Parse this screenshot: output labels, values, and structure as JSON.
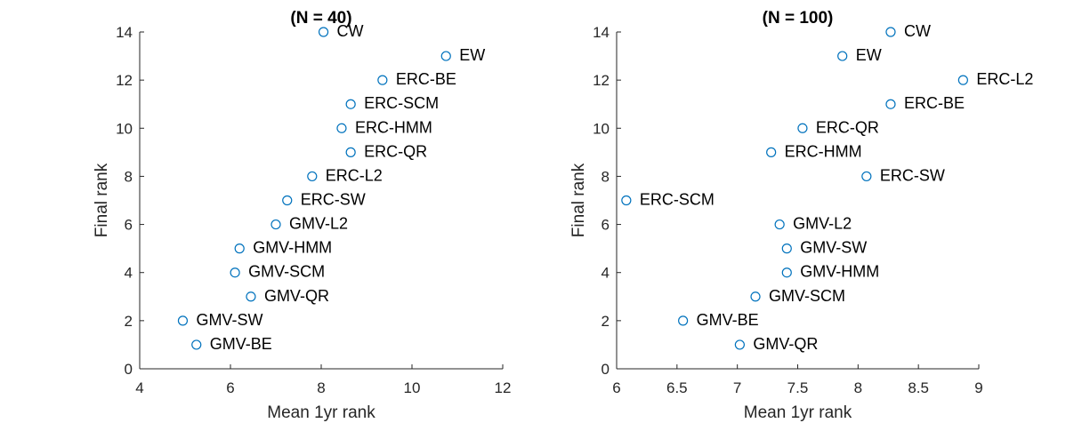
{
  "chart_data": [
    {
      "type": "scatter",
      "title": "(N = 40)",
      "xlabel": "Mean 1yr rank",
      "ylabel": "Final rank",
      "xlim": [
        4,
        12
      ],
      "ylim": [
        0,
        14
      ],
      "xticks": [
        4,
        6,
        8,
        10,
        12
      ],
      "yticks": [
        0,
        2,
        4,
        6,
        8,
        10,
        12,
        14
      ],
      "xtick_labels": [
        "4",
        "6",
        "8",
        "10",
        "12"
      ],
      "ytick_labels": [
        "0",
        "2",
        "4",
        "6",
        "8",
        "10",
        "12",
        "14"
      ],
      "grid": false,
      "marker_color": "#0072BD",
      "points": [
        {
          "label": "CW",
          "x": 8.05,
          "y": 14
        },
        {
          "label": "EW",
          "x": 10.75,
          "y": 13
        },
        {
          "label": "ERC-BE",
          "x": 9.35,
          "y": 12
        },
        {
          "label": "ERC-SCM",
          "x": 8.65,
          "y": 11
        },
        {
          "label": "ERC-HMM",
          "x": 8.45,
          "y": 10
        },
        {
          "label": "ERC-QR",
          "x": 8.65,
          "y": 9
        },
        {
          "label": "ERC-L2",
          "x": 7.8,
          "y": 8
        },
        {
          "label": "ERC-SW",
          "x": 7.25,
          "y": 7
        },
        {
          "label": "GMV-L2",
          "x": 7.0,
          "y": 6
        },
        {
          "label": "GMV-HMM",
          "x": 6.2,
          "y": 5
        },
        {
          "label": "GMV-SCM",
          "x": 6.1,
          "y": 4
        },
        {
          "label": "GMV-QR",
          "x": 6.45,
          "y": 3
        },
        {
          "label": "GMV-SW",
          "x": 4.95,
          "y": 2
        },
        {
          "label": "GMV-BE",
          "x": 5.25,
          "y": 1
        }
      ]
    },
    {
      "type": "scatter",
      "title": "(N = 100)",
      "xlabel": "Mean 1yr rank",
      "ylabel": "Final rank",
      "xlim": [
        6,
        9
      ],
      "ylim": [
        0,
        14
      ],
      "xticks": [
        6,
        6.5,
        7,
        7.5,
        8,
        8.5,
        9
      ],
      "yticks": [
        0,
        2,
        4,
        6,
        8,
        10,
        12,
        14
      ],
      "xtick_labels": [
        "6",
        "6.5",
        "7",
        "7.5",
        "8",
        "8.5",
        "9"
      ],
      "ytick_labels": [
        "0",
        "2",
        "4",
        "6",
        "8",
        "10",
        "12",
        "14"
      ],
      "grid": false,
      "marker_color": "#0072BD",
      "points": [
        {
          "label": "CW",
          "x": 8.27,
          "y": 14
        },
        {
          "label": "EW",
          "x": 7.87,
          "y": 13
        },
        {
          "label": "ERC-L2",
          "x": 8.87,
          "y": 12
        },
        {
          "label": "ERC-BE",
          "x": 8.27,
          "y": 11
        },
        {
          "label": "ERC-QR",
          "x": 7.54,
          "y": 10
        },
        {
          "label": "ERC-HMM",
          "x": 7.28,
          "y": 9
        },
        {
          "label": "ERC-SW",
          "x": 8.07,
          "y": 8
        },
        {
          "label": "ERC-SCM",
          "x": 6.08,
          "y": 7
        },
        {
          "label": "GMV-L2",
          "x": 7.35,
          "y": 6
        },
        {
          "label": "GMV-SW",
          "x": 7.41,
          "y": 5
        },
        {
          "label": "GMV-HMM",
          "x": 7.41,
          "y": 4
        },
        {
          "label": "GMV-SCM",
          "x": 7.15,
          "y": 3
        },
        {
          "label": "GMV-BE",
          "x": 6.55,
          "y": 2
        },
        {
          "label": "GMV-QR",
          "x": 7.02,
          "y": 1
        }
      ]
    }
  ]
}
